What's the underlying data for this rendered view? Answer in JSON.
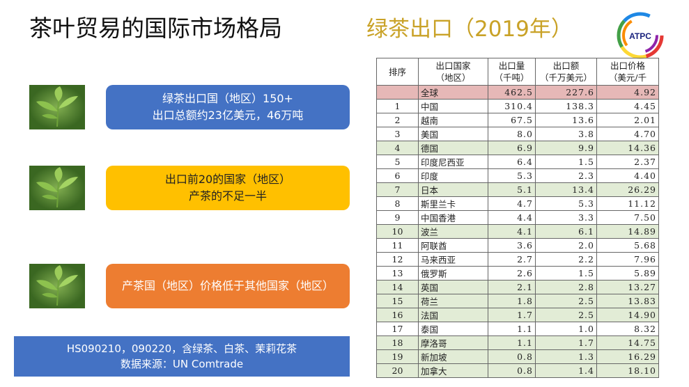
{
  "header": {
    "title": "茶叶贸易的国际市场格局",
    "subtitle": "绿茶出口（2019年）",
    "logo": "ATPC"
  },
  "boxes": [
    {
      "lines": [
        "绿茶出口国（地区）150+",
        "出口总额约23亿美元，46万吨"
      ],
      "color": "#4472c4",
      "text_color": "#ffffff"
    },
    {
      "lines": [
        "出口前20的国家（地区）",
        "产茶的不足一半"
      ],
      "color": "#ffc000",
      "text_color": "#222222"
    },
    {
      "lines": [
        "产茶国（地区）价格低于其他国家（地区）"
      ],
      "color": "#ed7d31",
      "text_color": "#ffffff"
    }
  ],
  "note": {
    "lines": [
      "HS090210，090220，含绿茶、白茶、茉莉花茶",
      "数据来源：UN Comtrade"
    ]
  },
  "table": {
    "columns": [
      [
        "排序"
      ],
      [
        "出口国家",
        "（地区）"
      ],
      [
        "出口量",
        "（千吨）"
      ],
      [
        "出口额",
        "（千万美元）"
      ],
      [
        "出口价格",
        "（美元/千"
      ]
    ],
    "rows": [
      {
        "cells": [
          "",
          "全球",
          "462.5",
          "227.6",
          "4.92"
        ],
        "color": "#e6b8b7"
      },
      {
        "cells": [
          "1",
          "中国",
          "310.4",
          "138.3",
          "4.45"
        ],
        "color": "#ffffff"
      },
      {
        "cells": [
          "2",
          "越南",
          "67.5",
          "13.6",
          "2.01"
        ],
        "color": "#ffffff"
      },
      {
        "cells": [
          "3",
          "美国",
          "8.0",
          "3.8",
          "4.70"
        ],
        "color": "#ffffff"
      },
      {
        "cells": [
          "4",
          "德国",
          "6.9",
          "9.9",
          "14.36"
        ],
        "color": "#e2ecd6"
      },
      {
        "cells": [
          "5",
          "印度尼西亚",
          "6.4",
          "1.5",
          "2.37"
        ],
        "color": "#ffffff"
      },
      {
        "cells": [
          "6",
          "印度",
          "5.3",
          "2.3",
          "4.40"
        ],
        "color": "#ffffff"
      },
      {
        "cells": [
          "7",
          "日本",
          "5.1",
          "13.4",
          "26.29"
        ],
        "color": "#e2ecd6"
      },
      {
        "cells": [
          "8",
          "斯里兰卡",
          "4.7",
          "5.3",
          "11.12"
        ],
        "color": "#ffffff"
      },
      {
        "cells": [
          "9",
          "中国香港",
          "4.4",
          "3.3",
          "7.50"
        ],
        "color": "#ffffff"
      },
      {
        "cells": [
          "10",
          "波兰",
          "4.1",
          "6.1",
          "14.89"
        ],
        "color": "#e2ecd6"
      },
      {
        "cells": [
          "11",
          "阿联酋",
          "3.6",
          "2.0",
          "5.68"
        ],
        "color": "#ffffff"
      },
      {
        "cells": [
          "12",
          "马来西亚",
          "2.7",
          "2.2",
          "7.96"
        ],
        "color": "#ffffff"
      },
      {
        "cells": [
          "13",
          "俄罗斯",
          "2.6",
          "1.5",
          "5.89"
        ],
        "color": "#ffffff"
      },
      {
        "cells": [
          "14",
          "英国",
          "2.1",
          "2.8",
          "13.27"
        ],
        "color": "#e2ecd6"
      },
      {
        "cells": [
          "15",
          "荷兰",
          "1.8",
          "2.5",
          "13.83"
        ],
        "color": "#e2ecd6"
      },
      {
        "cells": [
          "16",
          "法国",
          "1.7",
          "2.5",
          "14.90"
        ],
        "color": "#e2ecd6"
      },
      {
        "cells": [
          "17",
          "泰国",
          "1.1",
          "1.0",
          "8.32"
        ],
        "color": "#ffffff"
      },
      {
        "cells": [
          "18",
          "摩洛哥",
          "1.1",
          "1.7",
          "14.75"
        ],
        "color": "#e2ecd6"
      },
      {
        "cells": [
          "19",
          "新加坡",
          "0.8",
          "1.3",
          "16.29"
        ],
        "color": "#e2ecd6"
      },
      {
        "cells": [
          "20",
          "加拿大",
          "0.8",
          "1.4",
          "18.10"
        ],
        "color": "#e2ecd6"
      }
    ]
  }
}
